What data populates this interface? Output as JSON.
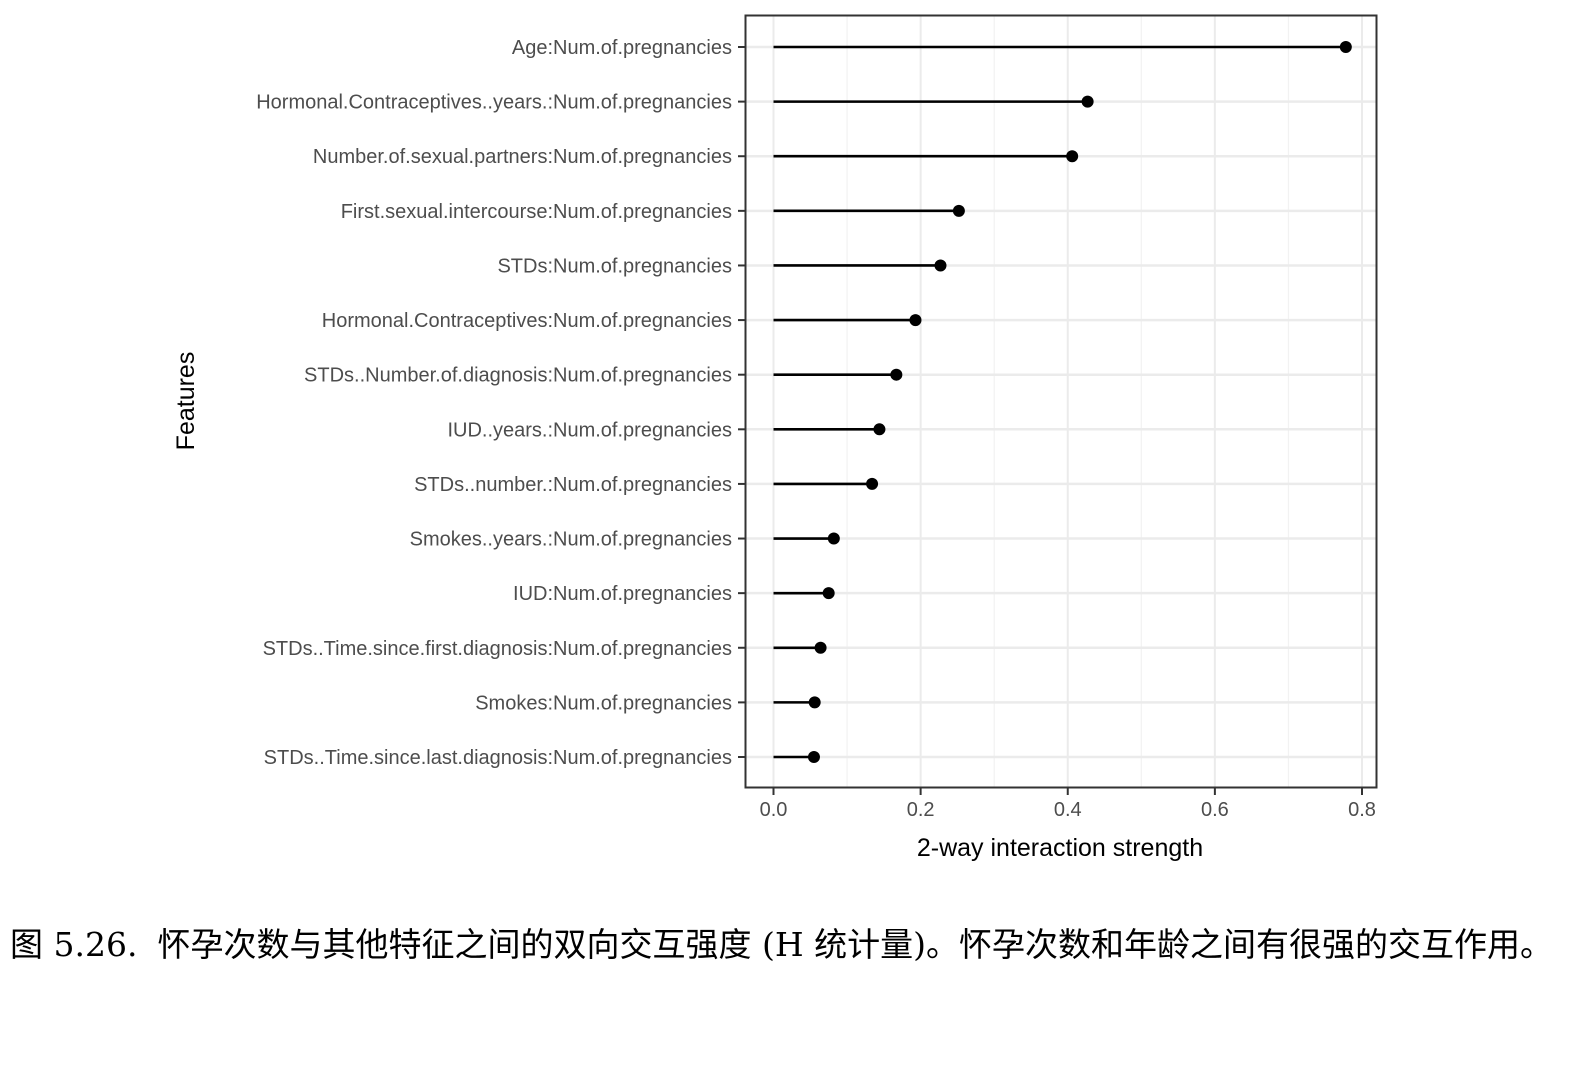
{
  "chart_data": {
    "type": "lollipop",
    "xlabel": "2-way interaction strength",
    "ylabel": "Features",
    "xlim": [
      -0.037,
      0.82
    ],
    "xticks": [
      "0.0",
      "0.2",
      "0.4",
      "0.6",
      "0.8"
    ],
    "xtick_values": [
      0,
      0.2,
      0.4,
      0.6,
      0.8
    ],
    "grid": true,
    "categories": [
      "Age:Num.of.pregnancies",
      "Hormonal.Contraceptives..years.:Num.of.pregnancies",
      "Number.of.sexual.partners:Num.of.pregnancies",
      "First.sexual.intercourse:Num.of.pregnancies",
      "STDs:Num.of.pregnancies",
      "Hormonal.Contraceptives:Num.of.pregnancies",
      "STDs..Number.of.diagnosis:Num.of.pregnancies",
      "IUD..years.:Num.of.pregnancies",
      "STDs..number.:Num.of.pregnancies",
      "Smokes..years.:Num.of.pregnancies",
      "IUD:Num.of.pregnancies",
      "STDs..Time.since.first.diagnosis:Num.of.pregnancies",
      "Smokes:Num.of.pregnancies",
      "STDs..Time.since.last.diagnosis:Num.of.pregnancies"
    ],
    "values": [
      0.778,
      0.427,
      0.406,
      0.252,
      0.227,
      0.193,
      0.167,
      0.144,
      0.134,
      0.082,
      0.075,
      0.064,
      0.056,
      0.055
    ]
  },
  "caption": {
    "figure_number": "图 5.26.",
    "text": "怀孕次数与其他特征之间的双向交互强度 (H 统计量)。怀孕次数和年龄之间有很强的交互作用。"
  }
}
